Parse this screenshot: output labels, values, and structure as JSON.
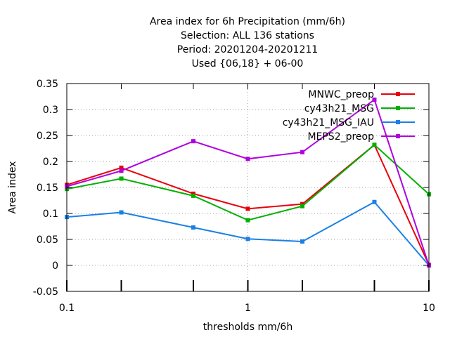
{
  "chart_data": {
    "type": "line",
    "title_lines": [
      "Area index  for 6h Precipitation (mm/6h)",
      "Selection: ALL    136 stations",
      "Period: 20201204-20201211",
      "Used {06,18} + 06-00"
    ],
    "xlabel": "thresholds mm/6h",
    "ylabel": "Area index",
    "x_scale": "log",
    "xlim": [
      0.1,
      10
    ],
    "ylim": [
      -0.05,
      0.35
    ],
    "x_ticks": [
      0.1,
      1,
      10
    ],
    "x_tick_labels": [
      "0.1",
      "1",
      "10"
    ],
    "x_minor_ticks": [
      0.2,
      0.5,
      2,
      5
    ],
    "y_ticks": [
      -0.05,
      0,
      0.05,
      0.1,
      0.15,
      0.2,
      0.25,
      0.3,
      0.35
    ],
    "y_tick_labels": [
      "-0.05",
      "0",
      "0.05",
      "0.1",
      "0.15",
      "0.2",
      "0.25",
      "0.3",
      "0.35"
    ],
    "grid": true,
    "legend_position": "top-right",
    "x": [
      0.1,
      0.2,
      0.5,
      1,
      2,
      5,
      10
    ],
    "series": [
      {
        "name": "MNWC_preop",
        "color": "#e8000b",
        "values": [
          0.155,
          0.188,
          0.138,
          0.109,
          0.118,
          0.232,
          0.001
        ]
      },
      {
        "name": "cy43h21_MSG",
        "color": "#00b000",
        "values": [
          0.147,
          0.167,
          0.134,
          0.087,
          0.114,
          0.232,
          0.137
        ]
      },
      {
        "name": "cy43h21_MSG_IAU",
        "color": "#1a80e6",
        "values": [
          0.093,
          0.102,
          0.073,
          0.051,
          0.046,
          0.122,
          0.0
        ]
      },
      {
        "name": "MEPS2_preop",
        "color": "#b000e0",
        "values": [
          0.152,
          0.182,
          0.239,
          0.205,
          0.218,
          0.319,
          0.0
        ]
      }
    ]
  }
}
